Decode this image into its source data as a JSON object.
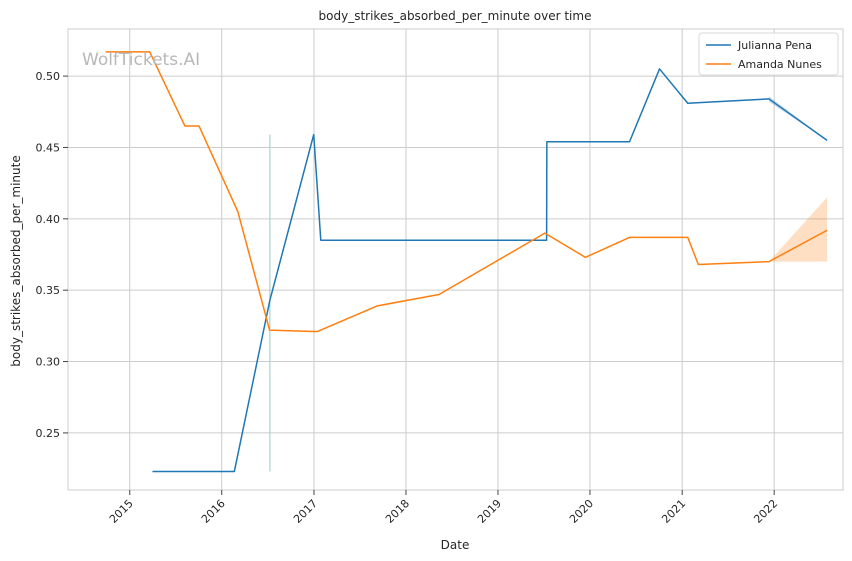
{
  "chart_data": {
    "type": "line",
    "title": "body_strikes_absorbed_per_minute over time",
    "xlabel": "Date",
    "ylabel": "body_strikes_absorbed_per_minute",
    "watermark": "WolfTickets.AI",
    "x_axis": {
      "type": "date",
      "range": [
        "2014-05-01",
        "2022-10-01"
      ]
    },
    "y_axis": {
      "range": [
        0.21,
        0.533
      ]
    },
    "xticks": [
      {
        "value": "2015-01-01",
        "label": "2015"
      },
      {
        "value": "2016-01-01",
        "label": "2016"
      },
      {
        "value": "2017-01-01",
        "label": "2017"
      },
      {
        "value": "2018-01-01",
        "label": "2018"
      },
      {
        "value": "2019-01-01",
        "label": "2019"
      },
      {
        "value": "2020-01-01",
        "label": "2020"
      },
      {
        "value": "2021-01-01",
        "label": "2021"
      },
      {
        "value": "2022-01-01",
        "label": "2022"
      }
    ],
    "yticks": [
      {
        "value": 0.25,
        "label": "0.25"
      },
      {
        "value": 0.3,
        "label": "0.30"
      },
      {
        "value": 0.35,
        "label": "0.35"
      },
      {
        "value": 0.4,
        "label": "0.40"
      },
      {
        "value": 0.45,
        "label": "0.45"
      },
      {
        "value": 0.5,
        "label": "0.50"
      }
    ],
    "grid": true,
    "legend_position": "top-right",
    "series": [
      {
        "name": "Julianna Pena",
        "color": "#1f77b4",
        "points": [
          {
            "x": "2015-04-01",
            "y": 0.223
          },
          {
            "x": "2016-02-20",
            "y": 0.223
          },
          {
            "x": "2016-07-10",
            "y": 0.343
          },
          {
            "x": "2016-12-31",
            "y": 0.459
          },
          {
            "x": "2017-01-28",
            "y": 0.385
          },
          {
            "x": "2019-07-13",
            "y": 0.385
          },
          {
            "x": "2019-07-14",
            "y": 0.454
          },
          {
            "x": "2020-06-06",
            "y": 0.454
          },
          {
            "x": "2020-10-03",
            "y": 0.505
          },
          {
            "x": "2021-01-23",
            "y": 0.481
          },
          {
            "x": "2021-12-11",
            "y": 0.484
          },
          {
            "x": "2022-07-30",
            "y": 0.455
          }
        ],
        "band": [
          {
            "x": "2021-12-11",
            "low": 0.482,
            "high": 0.486
          },
          {
            "x": "2022-07-30",
            "low": 0.455,
            "high": 0.455
          }
        ]
      },
      {
        "name": "Amanda Nunes",
        "color": "#ff7f0e",
        "points": [
          {
            "x": "2014-09-27",
            "y": 0.517
          },
          {
            "x": "2015-03-21",
            "y": 0.517
          },
          {
            "x": "2015-08-08",
            "y": 0.465
          },
          {
            "x": "2015-10-03",
            "y": 0.465
          },
          {
            "x": "2016-03-05",
            "y": 0.405
          },
          {
            "x": "2016-07-09",
            "y": 0.322
          },
          {
            "x": "2017-01-14",
            "y": 0.321
          },
          {
            "x": "2017-09-09",
            "y": 0.339
          },
          {
            "x": "2018-05-12",
            "y": 0.347
          },
          {
            "x": "2019-07-06",
            "y": 0.39
          },
          {
            "x": "2019-12-14",
            "y": 0.373
          },
          {
            "x": "2020-06-06",
            "y": 0.387
          },
          {
            "x": "2021-01-23",
            "y": 0.387
          },
          {
            "x": "2021-03-06",
            "y": 0.368
          },
          {
            "x": "2021-12-11",
            "y": 0.37
          },
          {
            "x": "2022-07-30",
            "y": 0.392
          }
        ],
        "band": [
          {
            "x": "2021-12-11",
            "low": 0.37,
            "high": 0.37
          },
          {
            "x": "2022-07-30",
            "low": 0.37,
            "high": 0.415
          }
        ]
      }
    ],
    "annotations": [
      {
        "type": "vline",
        "x": "2016-07-10",
        "y_low": 0.223,
        "y_high": 0.459,
        "color": "#8fcfca"
      }
    ]
  }
}
